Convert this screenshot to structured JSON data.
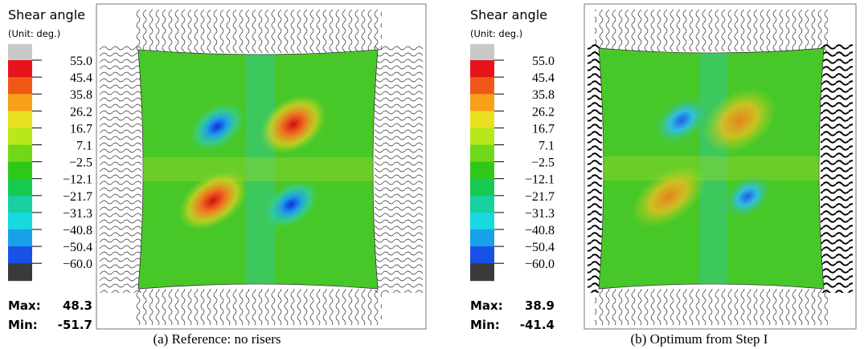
{
  "panels": [
    {
      "legend_title": "Shear angle",
      "legend_unit": "(Unit: deg.)",
      "scale_labels": [
        "55.0",
        "45.4",
        "35.8",
        "26.2",
        "16.7",
        "7.1",
        "−2.5",
        "−12.1",
        "−21.7",
        "−31.3",
        "−40.8",
        "−50.4",
        "−60.0"
      ],
      "max_label": "Max:",
      "max_value": "48.3",
      "min_label": "Min:",
      "min_value": "-51.7",
      "caption": "(a) Reference: no risers"
    },
    {
      "legend_title": "Shear angle",
      "legend_unit": "(Unit: deg.)",
      "scale_labels": [
        "55.0",
        "45.4",
        "35.8",
        "26.2",
        "16.7",
        "7.1",
        "−2.5",
        "−12.1",
        "−21.7",
        "−31.3",
        "−40.8",
        "−50.4",
        "−60.0"
      ],
      "max_label": "Max:",
      "max_value": "38.9",
      "min_label": "Min:",
      "min_value": "-41.4",
      "caption": "(b) Optimum from Step I"
    }
  ]
}
